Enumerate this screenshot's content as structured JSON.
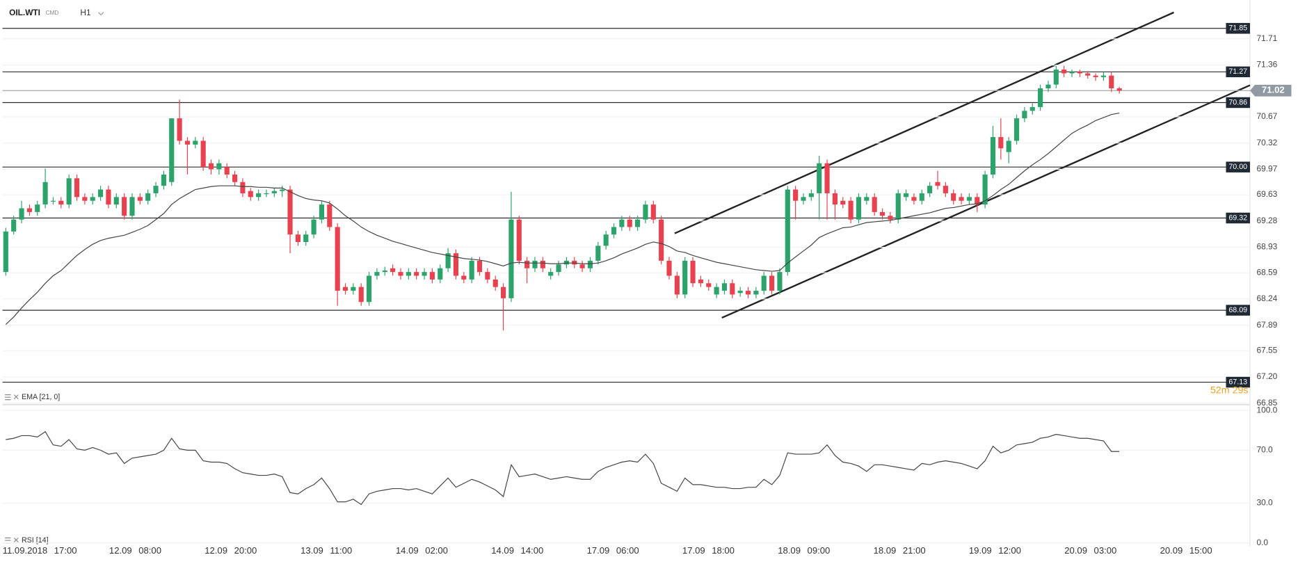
{
  "header": {
    "symbol": "OIL.WTI",
    "market": "CMD",
    "timeframe": "H1"
  },
  "chart_data": [
    {
      "type": "candlestick",
      "up_color": "#2ca36b",
      "down_color": "#e8414f",
      "open": [
        68.6,
        69.14,
        69.3,
        69.45,
        69.4,
        69.5,
        69.55,
        69.55,
        69.5,
        69.85,
        69.6,
        69.55,
        69.6,
        69.7,
        69.5,
        69.6,
        69.35,
        69.6,
        69.55,
        69.65,
        69.75,
        69.8,
        70.65,
        70.35,
        70.3,
        70.35,
        70.05,
        69.97,
        70.0,
        69.9,
        69.8,
        69.68,
        69.6,
        69.65,
        69.65,
        69.68,
        69.7,
        69.1,
        69.0,
        69.1,
        69.3,
        69.5,
        69.2,
        68.4,
        68.35,
        68.4,
        68.2,
        68.55,
        68.6,
        68.65,
        68.6,
        68.55,
        68.6,
        68.55,
        68.6,
        68.5,
        68.65,
        68.85,
        68.55,
        68.5,
        68.75,
        68.6,
        68.5,
        68.4,
        68.25,
        69.3,
        68.75,
        68.65,
        68.75,
        68.55,
        68.6,
        68.7,
        68.75,
        68.7,
        68.65,
        68.75,
        68.95,
        69.1,
        69.2,
        69.3,
        69.2,
        69.3,
        69.5,
        69.3,
        68.75,
        68.55,
        68.3,
        68.75,
        68.5,
        68.45,
        68.3,
        68.35,
        68.45,
        68.32,
        68.35,
        68.3,
        68.35,
        68.55,
        68.35,
        68.6,
        69.7,
        69.55,
        69.6,
        69.65,
        70.05,
        69.65,
        69.55,
        69.55,
        69.3,
        69.55,
        69.6,
        69.4,
        69.35,
        69.3,
        69.6,
        69.6,
        69.55,
        69.65,
        69.8,
        69.75,
        69.65,
        69.6,
        69.55,
        69.6,
        69.5,
        69.9,
        70.4,
        70.2,
        70.35,
        70.65,
        70.75,
        70.8,
        71.05,
        71.1,
        71.3,
        71.25,
        71.27,
        71.25,
        71.22,
        71.2,
        71.22,
        71.05
      ],
      "high": [
        69.19,
        69.35,
        69.55,
        69.5,
        69.55,
        69.98,
        69.6,
        69.6,
        69.9,
        69.9,
        69.65,
        69.65,
        69.75,
        69.75,
        69.65,
        69.65,
        69.65,
        69.65,
        69.7,
        69.8,
        69.95,
        70.65,
        70.9,
        70.4,
        70.4,
        70.4,
        70.1,
        70.1,
        70.05,
        69.95,
        69.85,
        69.72,
        69.7,
        69.7,
        69.72,
        69.75,
        69.75,
        69.15,
        69.15,
        69.35,
        69.55,
        69.55,
        69.25,
        68.45,
        68.45,
        68.45,
        68.6,
        68.65,
        68.67,
        68.7,
        68.65,
        68.65,
        68.65,
        68.65,
        68.65,
        68.7,
        68.92,
        68.9,
        68.6,
        68.8,
        68.8,
        68.65,
        68.55,
        68.45,
        69.67,
        69.35,
        68.8,
        68.8,
        68.8,
        68.65,
        68.75,
        68.8,
        68.8,
        68.75,
        68.8,
        69.0,
        69.15,
        69.25,
        69.35,
        69.35,
        69.35,
        69.55,
        69.55,
        69.35,
        68.8,
        68.6,
        68.8,
        68.8,
        68.55,
        68.5,
        68.45,
        68.5,
        68.5,
        68.4,
        68.4,
        68.4,
        68.6,
        68.6,
        68.65,
        69.75,
        69.75,
        69.65,
        69.7,
        70.15,
        70.1,
        69.7,
        69.6,
        69.6,
        69.65,
        69.65,
        69.65,
        69.45,
        69.4,
        69.7,
        69.7,
        69.65,
        69.7,
        69.8,
        69.95,
        69.8,
        69.7,
        69.65,
        69.65,
        69.65,
        69.95,
        70.55,
        70.65,
        70.4,
        70.7,
        70.8,
        70.85,
        71.1,
        71.15,
        71.35,
        71.35,
        71.3,
        71.3,
        71.28,
        71.25,
        71.27,
        71.27,
        71.07
      ],
      "low": [
        68.55,
        69.1,
        69.25,
        69.35,
        69.35,
        69.45,
        69.5,
        69.45,
        69.45,
        69.55,
        69.5,
        69.5,
        69.55,
        69.45,
        69.45,
        69.3,
        69.3,
        69.5,
        69.5,
        69.6,
        69.7,
        69.75,
        70.3,
        69.9,
        70.25,
        69.95,
        69.9,
        69.9,
        69.85,
        69.75,
        69.6,
        69.55,
        69.55,
        69.6,
        69.6,
        69.6,
        68.85,
        68.95,
        68.95,
        69.05,
        69.25,
        69.15,
        68.15,
        68.3,
        68.3,
        68.15,
        68.15,
        68.5,
        68.55,
        68.55,
        68.5,
        68.5,
        68.5,
        68.5,
        68.45,
        68.45,
        68.6,
        68.5,
        68.45,
        68.45,
        68.55,
        68.45,
        68.35,
        67.82,
        68.2,
        68.7,
        68.45,
        68.6,
        68.6,
        68.5,
        68.55,
        68.65,
        68.65,
        68.6,
        68.6,
        68.7,
        68.9,
        69.05,
        69.15,
        69.15,
        69.15,
        69.25,
        69.25,
        68.7,
        68.5,
        68.25,
        68.25,
        68.4,
        68.4,
        68.35,
        68.25,
        68.3,
        68.25,
        68.27,
        68.25,
        68.25,
        68.3,
        68.3,
        68.3,
        68.55,
        69.3,
        69.5,
        69.55,
        69.3,
        69.3,
        69.3,
        69.45,
        69.25,
        69.25,
        69.5,
        69.35,
        69.3,
        69.25,
        69.25,
        69.55,
        69.5,
        69.5,
        69.6,
        69.7,
        69.6,
        69.5,
        69.5,
        69.5,
        69.4,
        69.45,
        69.85,
        70.1,
        70.05,
        70.3,
        70.6,
        70.7,
        70.75,
        71.0,
        71.05,
        71.2,
        71.2,
        71.2,
        71.18,
        71.15,
        71.15,
        71.0,
        70.98
      ],
      "close": [
        69.14,
        69.3,
        69.45,
        69.4,
        69.5,
        69.8,
        69.55,
        69.5,
        69.85,
        69.6,
        69.55,
        69.6,
        69.7,
        69.5,
        69.6,
        69.35,
        69.6,
        69.55,
        69.65,
        69.75,
        69.9,
        70.65,
        70.35,
        70.3,
        70.35,
        70.0,
        69.97,
        70.05,
        69.9,
        69.8,
        69.65,
        69.6,
        69.65,
        69.65,
        69.68,
        69.7,
        69.1,
        69.0,
        69.1,
        69.3,
        69.5,
        69.2,
        68.35,
        68.35,
        68.4,
        68.2,
        68.55,
        68.6,
        68.62,
        68.6,
        68.55,
        68.6,
        68.55,
        68.6,
        68.5,
        68.65,
        68.85,
        68.55,
        68.5,
        68.75,
        68.6,
        68.5,
        68.4,
        68.25,
        69.3,
        68.75,
        68.65,
        68.75,
        68.65,
        68.6,
        68.7,
        68.75,
        68.7,
        68.65,
        68.75,
        68.95,
        69.1,
        69.2,
        69.3,
        69.2,
        69.3,
        69.5,
        69.3,
        68.75,
        68.55,
        68.3,
        68.75,
        68.45,
        68.45,
        68.4,
        68.4,
        68.45,
        68.3,
        68.35,
        68.3,
        68.35,
        68.55,
        68.35,
        68.6,
        69.7,
        69.55,
        69.6,
        69.65,
        70.05,
        69.65,
        69.5,
        69.5,
        69.3,
        69.6,
        69.6,
        69.4,
        69.35,
        69.3,
        69.65,
        69.65,
        69.55,
        69.65,
        69.75,
        69.75,
        69.65,
        69.55,
        69.55,
        69.6,
        69.5,
        69.9,
        70.4,
        70.25,
        70.35,
        70.65,
        70.75,
        70.8,
        71.05,
        71.1,
        71.3,
        71.25,
        71.27,
        71.25,
        71.22,
        71.2,
        71.22,
        71.05,
        71.02
      ],
      "series": [
        {
          "name": "EMA [21, 0]",
          "color": "#444444",
          "values": [
            67.9,
            68.0,
            68.12,
            68.23,
            68.33,
            68.45,
            68.55,
            68.62,
            68.72,
            68.82,
            68.9,
            68.97,
            69.02,
            69.05,
            69.07,
            69.09,
            69.13,
            69.17,
            69.22,
            69.3,
            69.38,
            69.5,
            69.58,
            69.64,
            69.7,
            69.72,
            69.74,
            69.75,
            69.75,
            69.75,
            69.74,
            69.74,
            69.73,
            69.73,
            69.72,
            69.72,
            69.67,
            69.62,
            69.58,
            69.56,
            69.55,
            69.52,
            69.44,
            69.35,
            69.28,
            69.2,
            69.14,
            69.09,
            69.05,
            69.01,
            68.98,
            68.95,
            68.92,
            68.89,
            68.86,
            68.84,
            68.82,
            68.8,
            68.78,
            68.77,
            68.76,
            68.74,
            68.71,
            68.68,
            68.72,
            68.73,
            68.72,
            68.72,
            68.72,
            68.71,
            68.71,
            68.72,
            68.72,
            68.71,
            68.71,
            68.72,
            68.75,
            68.79,
            68.84,
            68.88,
            68.92,
            68.97,
            69.0,
            68.98,
            68.94,
            68.88,
            68.86,
            68.82,
            68.79,
            68.76,
            68.73,
            68.71,
            68.69,
            68.67,
            68.65,
            68.63,
            68.62,
            68.61,
            68.62,
            68.72,
            68.8,
            68.88,
            68.96,
            69.06,
            69.11,
            69.15,
            69.19,
            69.2,
            69.23,
            69.26,
            69.27,
            69.28,
            69.29,
            69.31,
            69.33,
            69.35,
            69.37,
            69.39,
            69.42,
            69.45,
            69.46,
            69.48,
            69.5,
            69.51,
            69.55,
            69.62,
            69.7,
            69.77,
            69.86,
            69.95,
            70.03,
            70.1,
            70.18,
            70.27,
            70.36,
            70.45,
            70.51,
            70.56,
            70.62,
            70.66,
            70.7,
            70.72
          ]
        }
      ],
      "ylim": [
        66.83,
        72.14
      ],
      "yticks": [
        71.71,
        71.36,
        70.67,
        70.32,
        69.97,
        69.63,
        69.28,
        68.93,
        68.59,
        68.24,
        67.89,
        67.55,
        {
          "value": 67.2,
          "label": "67.20"
        },
        66.85
      ],
      "grid": true,
      "levels": [
        71.85,
        71.27,
        70.86,
        {
          "value": 70,
          "label": "70.00"
        },
        69.32,
        68.09,
        67.13
      ],
      "last_price": 71.02,
      "countdown": "52m 29s"
    },
    {
      "type": "line",
      "series": [
        {
          "name": "RSI [14]",
          "color": "#444444",
          "values": [
            78,
            79,
            81,
            81,
            80,
            84,
            74,
            73,
            78,
            71,
            70,
            72,
            70,
            67,
            68,
            60,
            64,
            65,
            66,
            67,
            70,
            79,
            71,
            70,
            70,
            62,
            61,
            61,
            60,
            56,
            53,
            52,
            51,
            51,
            52,
            50,
            38,
            37,
            41,
            44,
            49,
            41,
            31,
            31,
            33,
            29,
            37,
            39,
            40,
            41,
            41,
            40,
            41,
            39,
            37,
            43,
            49,
            42,
            45,
            48,
            46,
            43,
            40,
            35,
            59,
            50,
            51,
            52,
            50,
            48,
            49,
            50,
            49,
            48,
            48,
            54,
            57,
            59,
            61,
            62,
            61,
            67,
            60,
            45,
            42,
            39,
            49,
            44,
            44,
            43,
            42,
            42,
            41,
            41,
            42,
            42,
            48,
            44,
            51,
            68,
            67,
            67,
            67,
            68,
            74,
            66,
            61,
            60,
            58,
            54,
            59,
            59,
            58,
            57,
            56,
            55,
            60,
            59,
            61,
            62,
            61,
            60,
            58,
            56,
            62,
            73,
            68,
            70,
            74,
            75,
            76,
            79,
            80,
            82,
            81,
            80,
            79,
            79,
            78,
            77,
            69,
            69
          ]
        }
      ],
      "ylim": [
        0,
        100
      ],
      "yticks": [
        {
          "value": 100,
          "label": "100.0"
        },
        {
          "value": 70,
          "label": "70.0"
        },
        {
          "value": 30,
          "label": "30.0"
        },
        {
          "value": 0,
          "label": "0.0"
        }
      ],
      "x_labels": [
        "11.09.2018 17:00",
        "12.09 08:00",
        "12.09 20:00",
        "13.09 11:00",
        "14.09 02:00",
        "14.09 14:00",
        "17.09 06:00",
        "17.09 18:00",
        "18.09 09:00",
        "18.09 21:00",
        "19.09 12:00",
        "20.09 03:00",
        "20.09 15:00"
      ]
    }
  ]
}
